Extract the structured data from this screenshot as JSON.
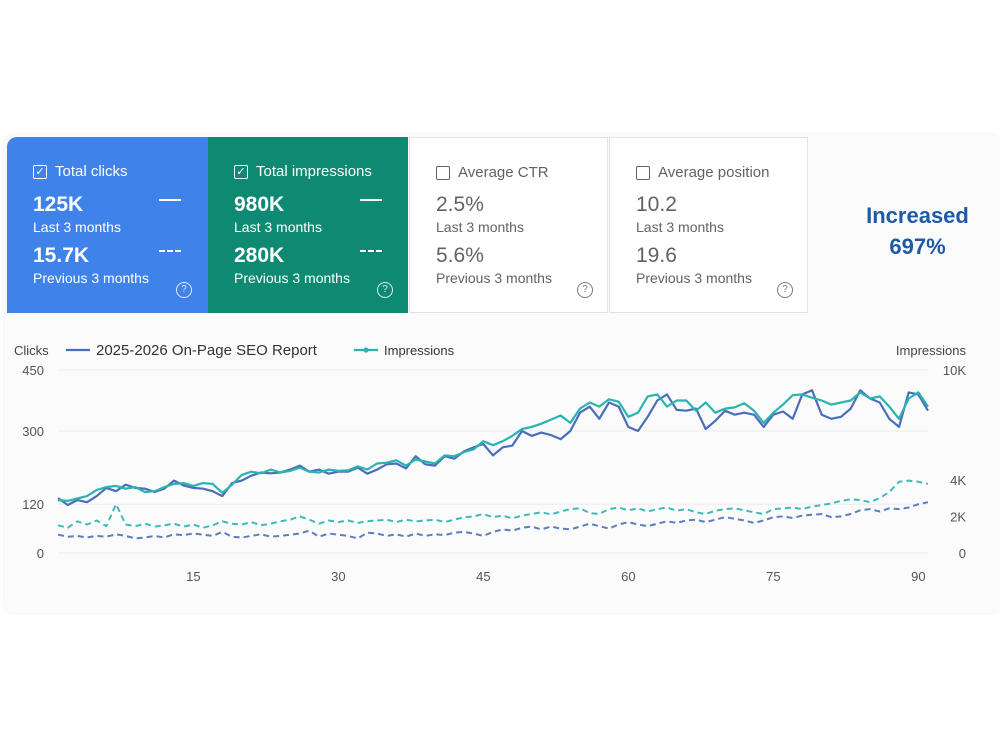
{
  "metrics": {
    "total_clicks": {
      "label": "Total clicks",
      "checked": true,
      "current": "125K",
      "current_label": "Last 3 months",
      "previous": "15.7K",
      "previous_label": "Previous 3 months",
      "color": "#3f82ea"
    },
    "total_impressions": {
      "label": "Total impressions",
      "checked": true,
      "current": "980K",
      "current_label": "Last 3 months",
      "previous": "280K",
      "previous_label": "Previous 3 months",
      "color": "#0f8a72"
    },
    "average_ctr": {
      "label": "Average CTR",
      "checked": false,
      "current": "2.5%",
      "current_label": "Last 3 months",
      "previous": "5.6%",
      "previous_label": "Previous 3 months"
    },
    "average_position": {
      "label": "Average position",
      "checked": false,
      "current": "10.2",
      "current_label": "Last 3 months",
      "previous": "19.6",
      "previous_label": "Previous 3 months"
    }
  },
  "callout": {
    "line1": "Increased",
    "line2": "697%"
  },
  "chart_data": {
    "type": "line",
    "title": "",
    "ylabel": "Clicks",
    "y2label": "Impressions",
    "ylim": [
      0,
      450
    ],
    "y2lim": [
      0,
      10000
    ],
    "yticks": [
      "0",
      "120",
      "300",
      "450"
    ],
    "y2ticks": [
      "0",
      "2K",
      "4K",
      "10K"
    ],
    "xticks": [
      15,
      30,
      45,
      60,
      75,
      90
    ],
    "xlim": [
      1,
      91
    ],
    "legend": [
      {
        "name": "2025-2026 On-Page SEO Report",
        "color": "#4a6fb8"
      },
      {
        "name": "Impressions",
        "color": "#2bb3b0"
      }
    ],
    "series": [
      {
        "name": "2025-2026 On-Page SEO Report",
        "color": "#4a6fb8",
        "style": "solid",
        "axis": "left",
        "x": [
          1,
          2,
          3,
          4,
          5,
          6,
          7,
          8,
          9,
          10,
          11,
          12,
          13,
          14,
          15,
          16,
          17,
          18,
          19,
          20,
          21,
          22,
          23,
          24,
          25,
          26,
          27,
          28,
          29,
          30,
          31,
          32,
          33,
          34,
          35,
          36,
          37,
          38,
          39,
          40,
          41,
          42,
          43,
          44,
          45,
          46,
          47,
          48,
          49,
          50,
          51,
          52,
          53,
          54,
          55,
          56,
          57,
          58,
          59,
          60,
          61,
          62,
          63,
          64,
          65,
          66,
          67,
          68,
          69,
          70,
          71,
          72,
          73,
          74,
          75,
          76,
          77,
          78,
          79,
          80,
          81,
          82,
          83,
          84,
          85,
          86,
          87,
          88,
          89,
          90,
          91
        ],
        "values": [
          135,
          118,
          130,
          125,
          140,
          160,
          152,
          168,
          160,
          158,
          150,
          158,
          178,
          166,
          160,
          158,
          152,
          140,
          172,
          178,
          190,
          198,
          196,
          198,
          205,
          215,
          200,
          205,
          195,
          200,
          200,
          210,
          195,
          205,
          218,
          220,
          208,
          238,
          218,
          215,
          238,
          232,
          250,
          260,
          268,
          240,
          260,
          264,
          300,
          288,
          296,
          290,
          280,
          300,
          345,
          360,
          330,
          370,
          360,
          310,
          300,
          335,
          375,
          390,
          352,
          350,
          355,
          305,
          325,
          350,
          340,
          345,
          340,
          310,
          340,
          348,
          330,
          390,
          400,
          340,
          330,
          335,
          355,
          400,
          380,
          370,
          330,
          310,
          395,
          390,
          350
        ]
      },
      {
        "name": "Impressions",
        "color": "#2bb3b0",
        "style": "solid",
        "axis": "left",
        "x": [
          1,
          2,
          3,
          4,
          5,
          6,
          7,
          8,
          9,
          10,
          11,
          12,
          13,
          14,
          15,
          16,
          17,
          18,
          19,
          20,
          21,
          22,
          23,
          24,
          25,
          26,
          27,
          28,
          29,
          30,
          31,
          32,
          33,
          34,
          35,
          36,
          37,
          38,
          39,
          40,
          41,
          42,
          43,
          44,
          45,
          46,
          47,
          48,
          49,
          50,
          51,
          52,
          53,
          54,
          55,
          56,
          57,
          58,
          59,
          60,
          61,
          62,
          63,
          64,
          65,
          66,
          67,
          68,
          69,
          70,
          71,
          72,
          73,
          74,
          75,
          76,
          77,
          78,
          79,
          80,
          81,
          82,
          83,
          84,
          85,
          86,
          87,
          88,
          89,
          90,
          91
        ],
        "values": [
          130,
          128,
          134,
          140,
          155,
          162,
          165,
          158,
          162,
          150,
          152,
          162,
          170,
          172,
          165,
          172,
          170,
          148,
          168,
          192,
          200,
          196,
          205,
          198,
          202,
          210,
          200,
          198,
          205,
          202,
          203,
          213,
          205,
          220,
          222,
          228,
          215,
          230,
          225,
          220,
          240,
          238,
          248,
          255,
          275,
          265,
          275,
          288,
          305,
          310,
          318,
          328,
          338,
          320,
          355,
          370,
          360,
          378,
          372,
          335,
          345,
          385,
          390,
          360,
          375,
          375,
          350,
          370,
          345,
          355,
          358,
          368,
          350,
          320,
          345,
          365,
          388,
          390,
          382,
          375,
          365,
          370,
          375,
          395,
          380,
          385,
          360,
          330,
          380,
          395,
          360
        ]
      },
      {
        "name": "Clicks (previous 3 months)",
        "color": "#4a6fb8",
        "style": "dashed",
        "axis": "left",
        "x": [
          1,
          2,
          3,
          4,
          5,
          6,
          7,
          8,
          9,
          10,
          11,
          12,
          13,
          14,
          15,
          16,
          17,
          18,
          19,
          20,
          21,
          22,
          23,
          24,
          25,
          26,
          27,
          28,
          29,
          30,
          31,
          32,
          33,
          34,
          35,
          36,
          37,
          38,
          39,
          40,
          41,
          42,
          43,
          44,
          45,
          46,
          47,
          48,
          49,
          50,
          51,
          52,
          53,
          54,
          55,
          56,
          57,
          58,
          59,
          60,
          61,
          62,
          63,
          64,
          65,
          66,
          67,
          68,
          69,
          70,
          71,
          72,
          73,
          74,
          75,
          76,
          77,
          78,
          79,
          80,
          81,
          82,
          83,
          84,
          85,
          86,
          87,
          88,
          89,
          90,
          91
        ],
        "values": [
          45,
          40,
          42,
          38,
          42,
          40,
          46,
          42,
          36,
          38,
          42,
          38,
          46,
          44,
          48,
          45,
          42,
          52,
          40,
          38,
          42,
          46,
          40,
          42,
          45,
          48,
          55,
          40,
          48,
          45,
          42,
          36,
          50,
          48,
          42,
          46,
          40,
          48,
          42,
          46,
          44,
          50,
          52,
          48,
          42,
          52,
          58,
          55,
          62,
          65,
          58,
          65,
          60,
          58,
          65,
          72,
          66,
          60,
          70,
          76,
          70,
          66,
          72,
          78,
          74,
          80,
          82,
          76,
          82,
          88,
          84,
          80,
          74,
          80,
          88,
          90,
          86,
          92,
          94,
          96,
          88,
          90,
          96,
          105,
          108,
          102,
          110,
          108,
          112,
          120,
          125
        ]
      },
      {
        "name": "Impressions (previous 3 months)",
        "color": "#2bb3b0",
        "style": "dashed",
        "axis": "left",
        "x": [
          1,
          2,
          3,
          4,
          5,
          6,
          7,
          8,
          9,
          10,
          11,
          12,
          13,
          14,
          15,
          16,
          17,
          18,
          19,
          20,
          21,
          22,
          23,
          24,
          25,
          26,
          27,
          28,
          29,
          30,
          31,
          32,
          33,
          34,
          35,
          36,
          37,
          38,
          39,
          40,
          41,
          42,
          43,
          44,
          45,
          46,
          47,
          48,
          49,
          50,
          51,
          52,
          53,
          54,
          55,
          56,
          57,
          58,
          59,
          60,
          61,
          62,
          63,
          64,
          65,
          66,
          67,
          68,
          69,
          70,
          71,
          72,
          73,
          74,
          75,
          76,
          77,
          78,
          79,
          80,
          81,
          82,
          83,
          84,
          85,
          86,
          87,
          88,
          89,
          90,
          91
        ],
        "values": [
          68,
          62,
          78,
          70,
          80,
          66,
          120,
          70,
          66,
          72,
          65,
          68,
          72,
          65,
          70,
          62,
          68,
          78,
          72,
          70,
          76,
          68,
          72,
          78,
          82,
          90,
          82,
          72,
          80,
          76,
          80,
          74,
          78,
          80,
          82,
          76,
          82,
          78,
          80,
          82,
          76,
          82,
          88,
          90,
          96,
          88,
          92,
          85,
          92,
          96,
          100,
          95,
          102,
          108,
          110,
          98,
          96,
          108,
          112,
          105,
          110,
          102,
          108,
          112,
          104,
          108,
          100,
          96,
          104,
          108,
          110,
          105,
          100,
          96,
          108,
          110,
          112,
          108,
          114,
          118,
          122,
          128,
          132,
          130,
          125,
          135,
          150,
          175,
          178,
          175,
          170
        ]
      }
    ]
  }
}
